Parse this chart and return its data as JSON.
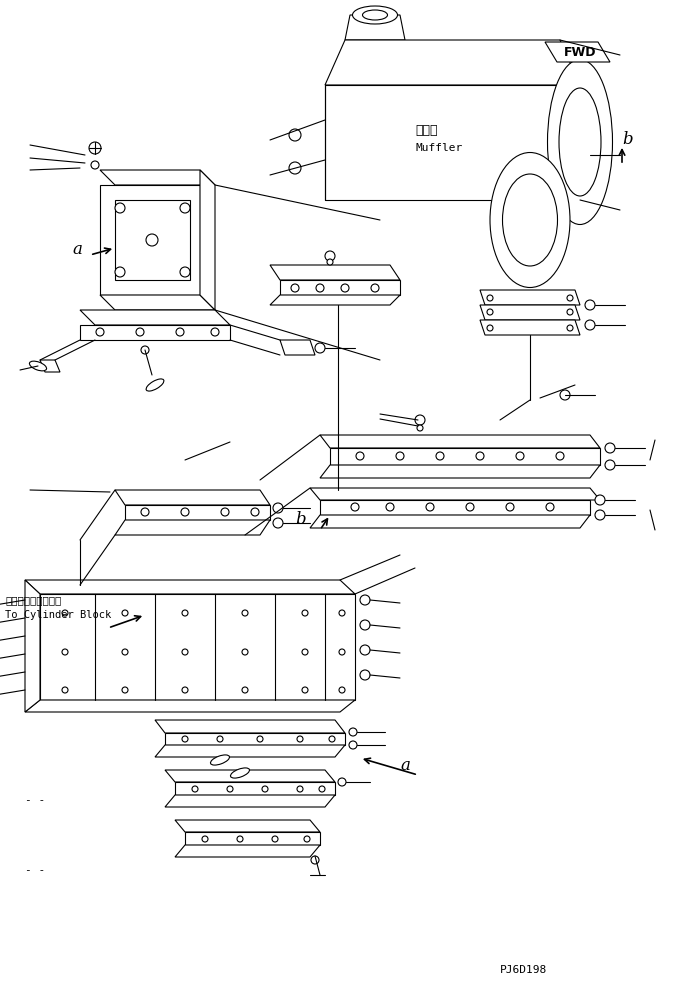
{
  "bg_color": "#ffffff",
  "line_color": "#000000",
  "fig_width": 6.76,
  "fig_height": 9.81,
  "dpi": 100,
  "title_code": "PJ6D198",
  "label_fwd": "FWD",
  "label_muffler_jp": "マフラ",
  "label_muffler_en": "Muffler",
  "label_cylinder_jp": "シリンダブロックへ",
  "label_cylinder_en": "To Cylinder Block",
  "label_a": "a",
  "label_b": "b",
  "label_dash": "- -"
}
